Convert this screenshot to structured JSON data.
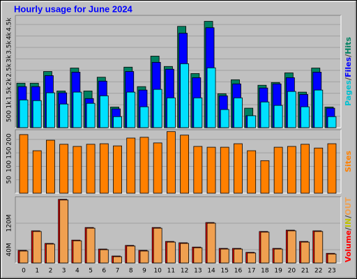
{
  "chart_data": [
    {
      "type": "bar",
      "title": "Hourly usage for June 2024",
      "ylim": [
        0,
        4900
      ],
      "yticks": [
        500,
        {
          "value": 1000,
          "label": "1k"
        },
        {
          "value": 1500,
          "label": "1.5k"
        },
        {
          "value": 2000,
          "label": "2k"
        },
        {
          "value": 2500,
          "label": "2.5k"
        },
        {
          "value": 3000,
          "label": "3k"
        },
        {
          "value": 3500,
          "label": "3.5k"
        },
        {
          "value": 4000,
          "label": "4k"
        },
        {
          "value": 4500,
          "label": "4.5k"
        }
      ],
      "grid": true,
      "legend_separator": "/",
      "series": [
        {
          "name": "Hits",
          "color": "#008060",
          "values": [
            1940,
            1940,
            2450,
            1600,
            2600,
            1600,
            2200,
            900,
            2640,
            1790,
            3120,
            2670,
            4420,
            2360,
            4640,
            1480,
            2090,
            850,
            1850,
            1970,
            2390,
            1550,
            2600,
            900
          ]
        },
        {
          "name": "Files",
          "color": "#0000ff",
          "values": [
            1790,
            1790,
            2270,
            1520,
            2420,
            1270,
            2030,
            820,
            2450,
            1640,
            2850,
            2550,
            4120,
            2180,
            4360,
            1390,
            1910,
            520,
            1730,
            1910,
            2180,
            1450,
            2420,
            850
          ]
        },
        {
          "name": "Pages",
          "color": "#00e0ff",
          "values": [
            1210,
            1180,
            1520,
            1030,
            1550,
            1060,
            1390,
            480,
            1550,
            910,
            1670,
            1300,
            2790,
            1300,
            2610,
            790,
            1300,
            520,
            1120,
            970,
            1580,
            910,
            1640,
            480
          ]
        }
      ]
    },
    {
      "type": "bar",
      "ylim": [
        0,
        236
      ],
      "yticks": [
        50,
        100,
        150,
        200
      ],
      "grid": true,
      "series": [
        {
          "name": "Sites",
          "color": "#ff8000",
          "values": [
            218,
            158,
            197,
            182,
            174,
            182,
            184,
            176,
            205,
            208,
            187,
            229,
            216,
            174,
            171,
            171,
            184,
            158,
            121,
            171,
            174,
            182,
            168,
            184
          ]
        }
      ]
    },
    {
      "type": "bar",
      "ylim": [
        0,
        200
      ],
      "yticks": [
        {
          "value": 40,
          "label": "40M"
        },
        {
          "value": 120,
          "label": "120M"
        }
      ],
      "grid": true,
      "legend_separator": "/",
      "in_label": {
        "text": "IN",
        "color": "#c0c000"
      },
      "categories": [
        "0",
        "1",
        "2",
        "3",
        "4",
        "5",
        "6",
        "7",
        "8",
        "9",
        "10",
        "11",
        "12",
        "13",
        "14",
        "15",
        "16",
        "17",
        "18",
        "19",
        "20",
        "21",
        "22",
        "23"
      ],
      "series": [
        {
          "name": "Volume",
          "color": "#ff0000",
          "values": [
            38,
            97,
            59,
            192,
            69,
            107,
            42,
            21,
            53,
            38,
            107,
            65,
            61,
            48,
            122,
            44,
            44,
            32,
            95,
            44,
            99,
            65,
            97,
            29
          ]
        },
        {
          "name": "OUT",
          "color": "#f0a050",
          "values": [
            36,
            95,
            57,
            190,
            67,
            105,
            40,
            19,
            51,
            36,
            105,
            63,
            59,
            46,
            120,
            42,
            42,
            30,
            93,
            42,
            97,
            63,
            95,
            27
          ]
        }
      ]
    }
  ]
}
